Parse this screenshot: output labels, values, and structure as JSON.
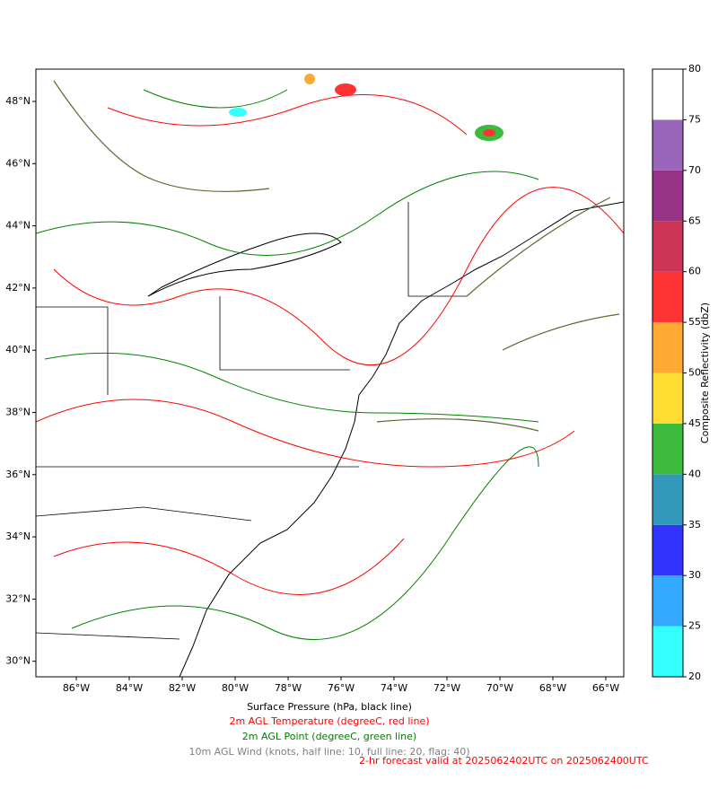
{
  "map": {
    "lon_ticks": [
      "86°W",
      "84°W",
      "82°W",
      "80°W",
      "78°W",
      "76°W",
      "74°W",
      "72°W",
      "70°W",
      "68°W",
      "66°W"
    ],
    "lat_ticks": [
      "48°N",
      "46°N",
      "44°N",
      "42°N",
      "40°N",
      "38°N",
      "36°N",
      "34°N",
      "32°N",
      "30°N"
    ]
  },
  "chart_data": {
    "type": "colorbar",
    "label": "Composite Reflectivity (dbZ)",
    "ylim": [
      20,
      80
    ],
    "yticks": [
      20,
      25,
      30,
      35,
      40,
      45,
      50,
      55,
      60,
      65,
      70,
      75,
      80
    ],
    "colors": [
      "#33ffff",
      "#33aaff",
      "#3333ff",
      "#3399bb",
      "#3dbb3d",
      "#ffdd33",
      "#ffaa33",
      "#ff3333",
      "#cc3355",
      "#993388",
      "#9966bb",
      "#ffffff"
    ]
  },
  "captions": [
    {
      "text": "Surface Pressure (hPa, black line)",
      "color": "#000000"
    },
    {
      "text": "2m AGL Temperature (degreeC, red line)",
      "color": "#ff0000"
    },
    {
      "text": "2m AGL Point (degreeC, green line)",
      "color": "#008000"
    },
    {
      "text": "10m AGL Wind (knots, half line: 10, full line: 20, flag: 40)",
      "color": "#808080"
    },
    {
      "text": "2-hr forecast valid at 2025062402UTC on 2025062400UTC",
      "color": "#ff0000"
    }
  ]
}
